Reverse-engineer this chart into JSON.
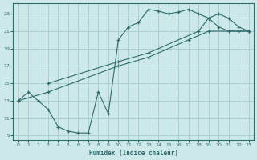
{
  "xlabel": "Humidex (Indice chaleur)",
  "bg_color": "#cde8e8",
  "grid_color": "#aacfcf",
  "line_color": "#2e6b6b",
  "xlim": [
    -0.5,
    23.5
  ],
  "ylim": [
    8.5,
    24.2
  ],
  "xticks": [
    0,
    1,
    2,
    3,
    4,
    5,
    6,
    7,
    8,
    9,
    10,
    11,
    12,
    13,
    14,
    15,
    16,
    17,
    18,
    19,
    20,
    21,
    22,
    23
  ],
  "yticks": [
    9,
    11,
    13,
    15,
    17,
    19,
    21,
    23
  ],
  "line1_x": [
    0,
    1,
    2,
    3,
    4,
    5,
    6,
    7,
    8,
    9,
    10,
    11,
    12,
    13,
    14,
    15,
    16,
    17,
    18,
    19,
    20,
    21,
    22,
    23
  ],
  "line1_y": [
    13,
    14,
    13,
    12,
    10,
    9.5,
    9.3,
    9.3,
    14,
    11.5,
    20,
    21.5,
    22,
    23.5,
    23.3,
    23,
    23.2,
    23.5,
    23,
    22.5,
    21.5,
    21,
    21,
    21
  ],
  "line2_x": [
    0,
    3,
    10,
    13,
    17,
    19,
    22,
    23
  ],
  "line2_y": [
    13,
    14,
    17,
    18,
    20,
    21,
    21,
    21
  ],
  "line3_x": [
    3,
    10,
    13,
    18,
    19,
    20,
    21,
    22,
    23
  ],
  "line3_y": [
    15,
    17.5,
    18.5,
    21,
    22.5,
    23,
    22.5,
    21.5,
    21
  ]
}
